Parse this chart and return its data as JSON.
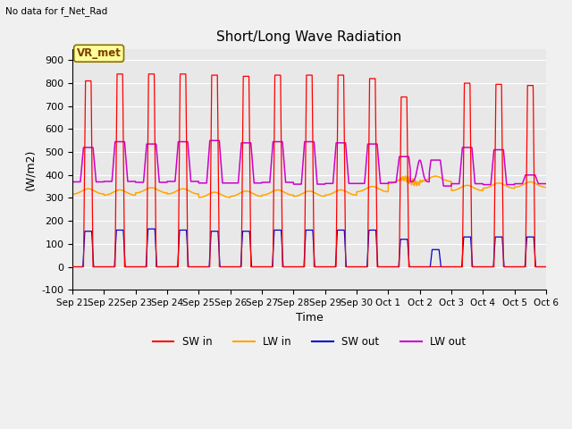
{
  "title": "Short/Long Wave Radiation",
  "xlabel": "Time",
  "ylabel": "(W/m2)",
  "top_left_text": "No data for f_Net_Rad",
  "station_label": "VR_met",
  "ylim": [
    -100,
    950
  ],
  "yticks": [
    -100,
    0,
    100,
    200,
    300,
    400,
    500,
    600,
    700,
    800,
    900
  ],
  "xtick_labels": [
    "Sep 21",
    "Sep 22",
    "Sep 23",
    "Sep 24",
    "Sep 25",
    "Sep 26",
    "Sep 27",
    "Sep 28",
    "Sep 29",
    "Sep 30",
    "Oct 1",
    "Oct 2",
    "Oct 3",
    "Oct 4",
    "Oct 5",
    "Oct 6"
  ],
  "colors": {
    "SW_in": "#ff0000",
    "LW_in": "#ffa500",
    "SW_out": "#0000cc",
    "LW_out": "#cc00cc"
  },
  "background_color": "#e8e8e8",
  "fig_bg_color": "#f0f0f0",
  "title_fontsize": 11,
  "n_days": 15,
  "sw_in_peaks": [
    810,
    840,
    840,
    840,
    835,
    830,
    835,
    835,
    835,
    820,
    740,
    0,
    800,
    795,
    790
  ],
  "sw_out_peaks": [
    155,
    160,
    165,
    160,
    155,
    155,
    160,
    160,
    160,
    160,
    120,
    75,
    130,
    130,
    130
  ],
  "lw_in_base": [
    315,
    310,
    320,
    315,
    300,
    305,
    310,
    305,
    310,
    325,
    360,
    370,
    330,
    340,
    345
  ],
  "lw_out_night": [
    370,
    372,
    368,
    372,
    365,
    365,
    368,
    360,
    363,
    363,
    368,
    352,
    362,
    358,
    362
  ],
  "lw_out_day": [
    520,
    545,
    535,
    545,
    550,
    540,
    545,
    545,
    540,
    535,
    480,
    465,
    520,
    510,
    400
  ]
}
